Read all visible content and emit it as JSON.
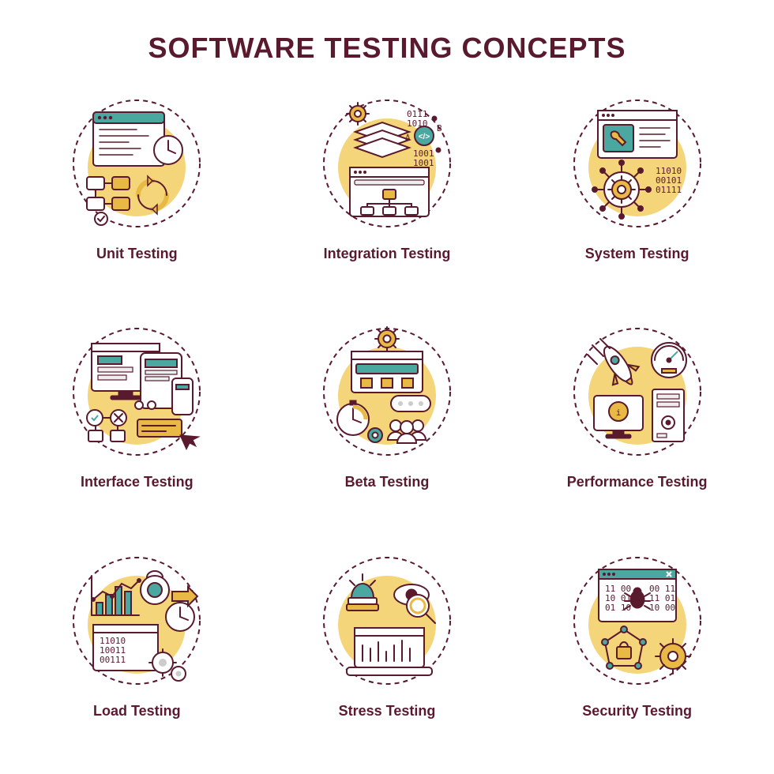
{
  "title": "SOFTWARE TESTING CONCEPTS",
  "colors": {
    "title": "#5a1a2e",
    "label": "#5a1a2e",
    "stroke": "#5a1a2e",
    "blob": "#f5d57a",
    "teal": "#4aa8a0",
    "gold": "#e8b945",
    "white": "#ffffff",
    "bg": "#ffffff"
  },
  "style": {
    "title_fontsize": 36,
    "label_fontsize": 18,
    "stroke_width": 2,
    "dash": "6 5",
    "blob_radius": 70,
    "icon_box": 190,
    "grid_cols": 3,
    "grid_rows": 3
  },
  "items": [
    {
      "label": "Unit Testing",
      "name": "unit-testing"
    },
    {
      "label": "Integration Testing",
      "name": "integration-testing"
    },
    {
      "label": "System Testing",
      "name": "system-testing"
    },
    {
      "label": "Interface Testing",
      "name": "interface-testing"
    },
    {
      "label": "Beta Testing",
      "name": "beta-testing"
    },
    {
      "label": "Performance Testing",
      "name": "performance-testing"
    },
    {
      "label": "Load Testing",
      "name": "load-testing"
    },
    {
      "label": "Stress Testing",
      "name": "stress-testing"
    },
    {
      "label": "Security Testing",
      "name": "security-testing"
    }
  ]
}
